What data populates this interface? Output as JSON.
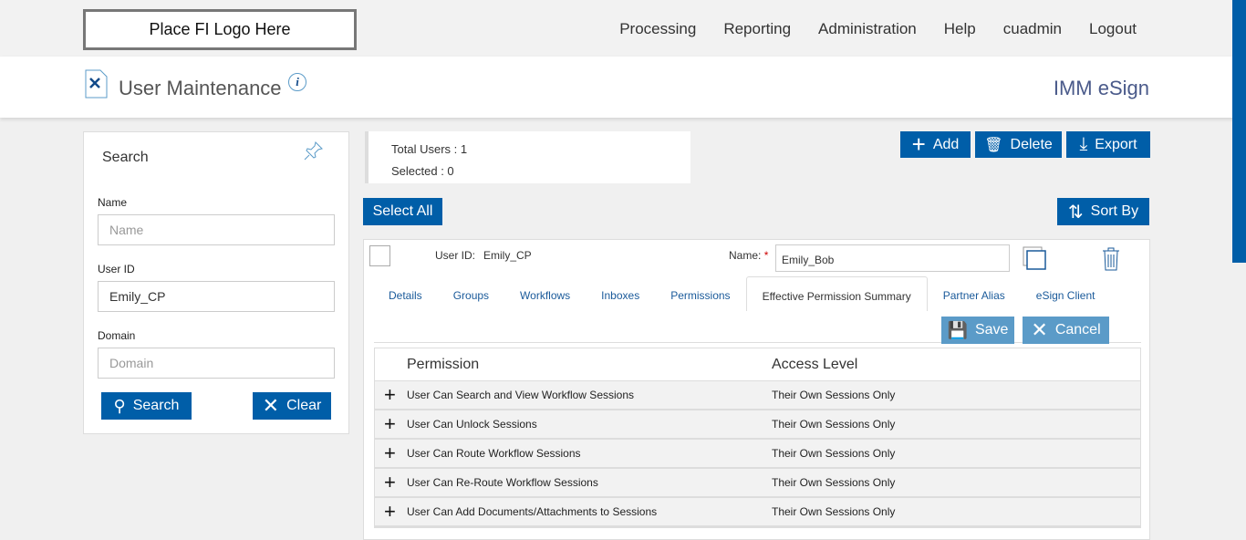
{
  "header": {
    "logo": "Place FI Logo Here",
    "nav": [
      "Processing",
      "Reporting",
      "Administration",
      "Help",
      "cuadmin",
      "Logout"
    ],
    "page_title": "User Maintenance",
    "brand": "IMM eSign"
  },
  "search": {
    "title": "Search",
    "name_label": "Name",
    "name_placeholder": "Name",
    "userid_label": "User ID",
    "userid_value": "Emily_CP",
    "domain_label": "Domain",
    "domain_placeholder": "Domain",
    "search_btn": "Search",
    "clear_btn": "Clear"
  },
  "stats": {
    "total": "Total Users : 1",
    "selected": "Selected : 0"
  },
  "toolbar": {
    "add": "Add",
    "delete": "Delete",
    "export": "Export",
    "select_all": "Select All",
    "sort_by": "Sort By"
  },
  "user": {
    "userid_label": "User ID:",
    "userid": "Emily_CP",
    "name_label": "Name:",
    "required": "*",
    "name": "Emily_Bob"
  },
  "tabs": [
    "Details",
    "Groups",
    "Workflows",
    "Inboxes",
    "Permissions",
    "Effective Permission Summary",
    "Partner Alias",
    "eSign Client"
  ],
  "actions": {
    "save": "Save",
    "cancel": "Cancel"
  },
  "table": {
    "headers": [
      "Permission",
      "Access Level"
    ],
    "rows": [
      [
        "User Can Search and View Workflow Sessions",
        "Their Own Sessions Only"
      ],
      [
        "User Can Unlock Sessions",
        "Their Own Sessions Only"
      ],
      [
        "User Can Route Workflow Sessions",
        "Their Own Sessions Only"
      ],
      [
        "User Can Re-Route Workflow Sessions",
        "Their Own Sessions Only"
      ],
      [
        "User Can Add Documents/Attachments to Sessions",
        "Their Own Sessions Only"
      ]
    ]
  },
  "colors": {
    "primary": "#005ea8",
    "disabled": "#5b9bc8"
  }
}
